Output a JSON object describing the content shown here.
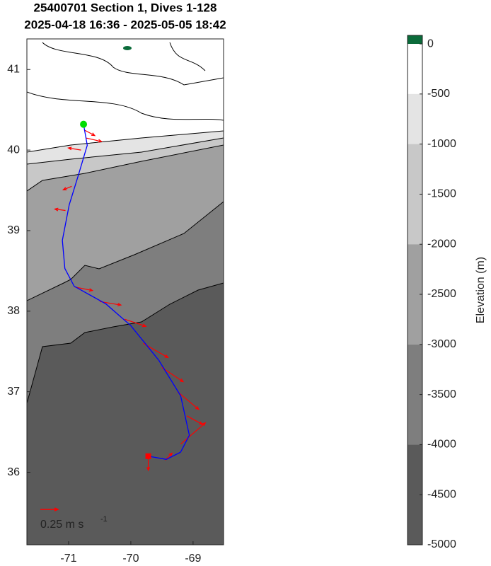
{
  "chart_data": {
    "type": "map",
    "title": "25400701 Section 1, Dives 1-128",
    "subtitle": "2025-04-18 16:36 - 2025-05-05 18:42",
    "xlim": [
      -71.67,
      -68.51
    ],
    "ylim": [
      35.1,
      41.38
    ],
    "xticks": [
      -71,
      -70,
      -69
    ],
    "yticks": [
      36,
      37,
      38,
      39,
      40,
      41
    ],
    "track": {
      "color": "#0000ff",
      "lon": [
        -70.76,
        -70.7,
        -70.85,
        -70.99,
        -71.1,
        -71.06,
        -70.91,
        -70.4,
        -70.0,
        -69.55,
        -69.2,
        -69.06,
        -69.2,
        -69.43,
        -69.72
      ],
      "lat": [
        40.32,
        40.06,
        39.67,
        39.32,
        38.88,
        38.53,
        38.31,
        38.09,
        37.82,
        37.39,
        36.95,
        36.46,
        36.25,
        36.16,
        36.2
      ]
    },
    "start_color": "#00dd00",
    "end_color": "#ff0000",
    "vectors": {
      "color": "#ff0000",
      "lon": [
        -70.75,
        -70.72,
        -70.8,
        -70.95,
        -71.05,
        -70.9,
        -70.5,
        -70.1,
        -69.8,
        -69.5,
        -69.25,
        -69.1,
        -69.2,
        -69.45,
        -69.72
      ],
      "lat": [
        40.25,
        40.15,
        40.0,
        39.55,
        39.25,
        38.3,
        38.12,
        37.9,
        37.6,
        37.3,
        37.0,
        36.7,
        36.35,
        36.15,
        36.2
      ],
      "u": [
        0.15,
        0.22,
        -0.18,
        -0.12,
        -0.15,
        0.25,
        0.3,
        0.3,
        0.35,
        0.3,
        0.3,
        0.22,
        0.35,
        0.1,
        0.0
      ],
      "v": [
        -0.08,
        -0.05,
        0.03,
        -0.05,
        0.02,
        -0.05,
        -0.05,
        -0.1,
        -0.2,
        -0.2,
        -0.25,
        -0.12,
        0.3,
        0.1,
        -0.2
      ]
    },
    "scale_vector": {
      "value": 0.25,
      "label": "0.25 m s",
      "superscript": "-1"
    },
    "colorbar": {
      "label": "Elevation (m)",
      "clim": [
        -5000,
        85
      ],
      "ticks": [
        0,
        -500,
        -1000,
        -1500,
        -2000,
        -2500,
        -3000,
        -3500,
        -4000,
        -4500,
        -5000
      ],
      "band_edges": [
        85,
        0,
        -500,
        -1000,
        -2000,
        -3000,
        -4000,
        -5000
      ],
      "band_colors": [
        "#0b6b3a",
        "#ffffff",
        "#e4e4e4",
        "#c8c8c8",
        "#a0a0a0",
        "#7e7e7e",
        "#5a5a5a"
      ]
    }
  }
}
